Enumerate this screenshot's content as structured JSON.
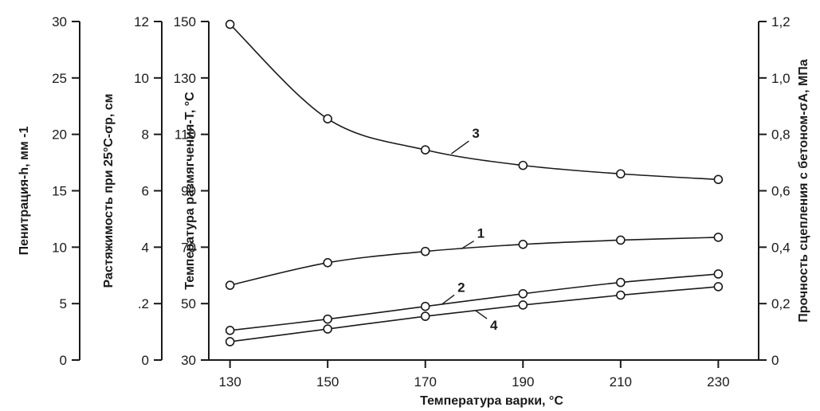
{
  "chart_data": {
    "type": "line",
    "xlabel": "Температура варки, °С",
    "x_ticks": [
      "130",
      "150",
      "170",
      "190",
      "210",
      "230"
    ],
    "xlim": [
      125,
      235
    ],
    "axes": [
      {
        "id": "penetration",
        "title": "Пенитрация-h, мм -1",
        "lim": [
          0,
          30
        ],
        "ticks": [
          "0",
          "5",
          "10",
          "15",
          "20",
          "25",
          "30"
        ]
      },
      {
        "id": "ductility",
        "title": "Растяжимость при 25°С-σр, см",
        "lim": [
          0,
          12
        ],
        "ticks": [
          "0",
          ".2",
          "4",
          "6",
          "8",
          "10",
          "12"
        ]
      },
      {
        "id": "softening",
        "title": "Температура размягчения-Т, °С",
        "lim": [
          30,
          150
        ],
        "ticks": [
          "30",
          "50",
          "70",
          "90",
          "110",
          "130",
          "150"
        ]
      },
      {
        "id": "adhesion",
        "title": "Прочность сцепления с бетоном-σА, МПа",
        "lim": [
          0,
          1.2
        ],
        "ticks": [
          "0",
          "0,2",
          "0,4",
          "0,6",
          "0,8",
          "1,0",
          "1,2"
        ]
      }
    ],
    "series": [
      {
        "name": "1",
        "axis": "softening",
        "x": [
          130,
          150,
          170,
          190,
          210,
          230
        ],
        "values": [
          56.5,
          64.5,
          68.5,
          71,
          72.5,
          73.5
        ]
      },
      {
        "name": "2",
        "axis": "softening",
        "x": [
          130,
          150,
          170,
          190,
          210,
          230
        ],
        "values": [
          40.5,
          44.5,
          49,
          53.5,
          57.5,
          60.5
        ]
      },
      {
        "name": "3",
        "axis": "softening",
        "x": [
          130,
          150,
          170,
          190,
          210,
          230
        ],
        "values": [
          149,
          115.5,
          104.5,
          99,
          96,
          94
        ]
      },
      {
        "name": "4",
        "axis": "softening",
        "x": [
          130,
          150,
          170,
          190,
          210,
          230
        ],
        "values": [
          36.5,
          41,
          45.5,
          49.5,
          53,
          56
        ]
      }
    ],
    "curve_labels": [
      {
        "series": "1",
        "text": "1"
      },
      {
        "series": "2",
        "text": "2"
      },
      {
        "series": "3",
        "text": "3"
      },
      {
        "series": "4",
        "text": "4"
      }
    ],
    "grid": false,
    "legend": "none"
  }
}
